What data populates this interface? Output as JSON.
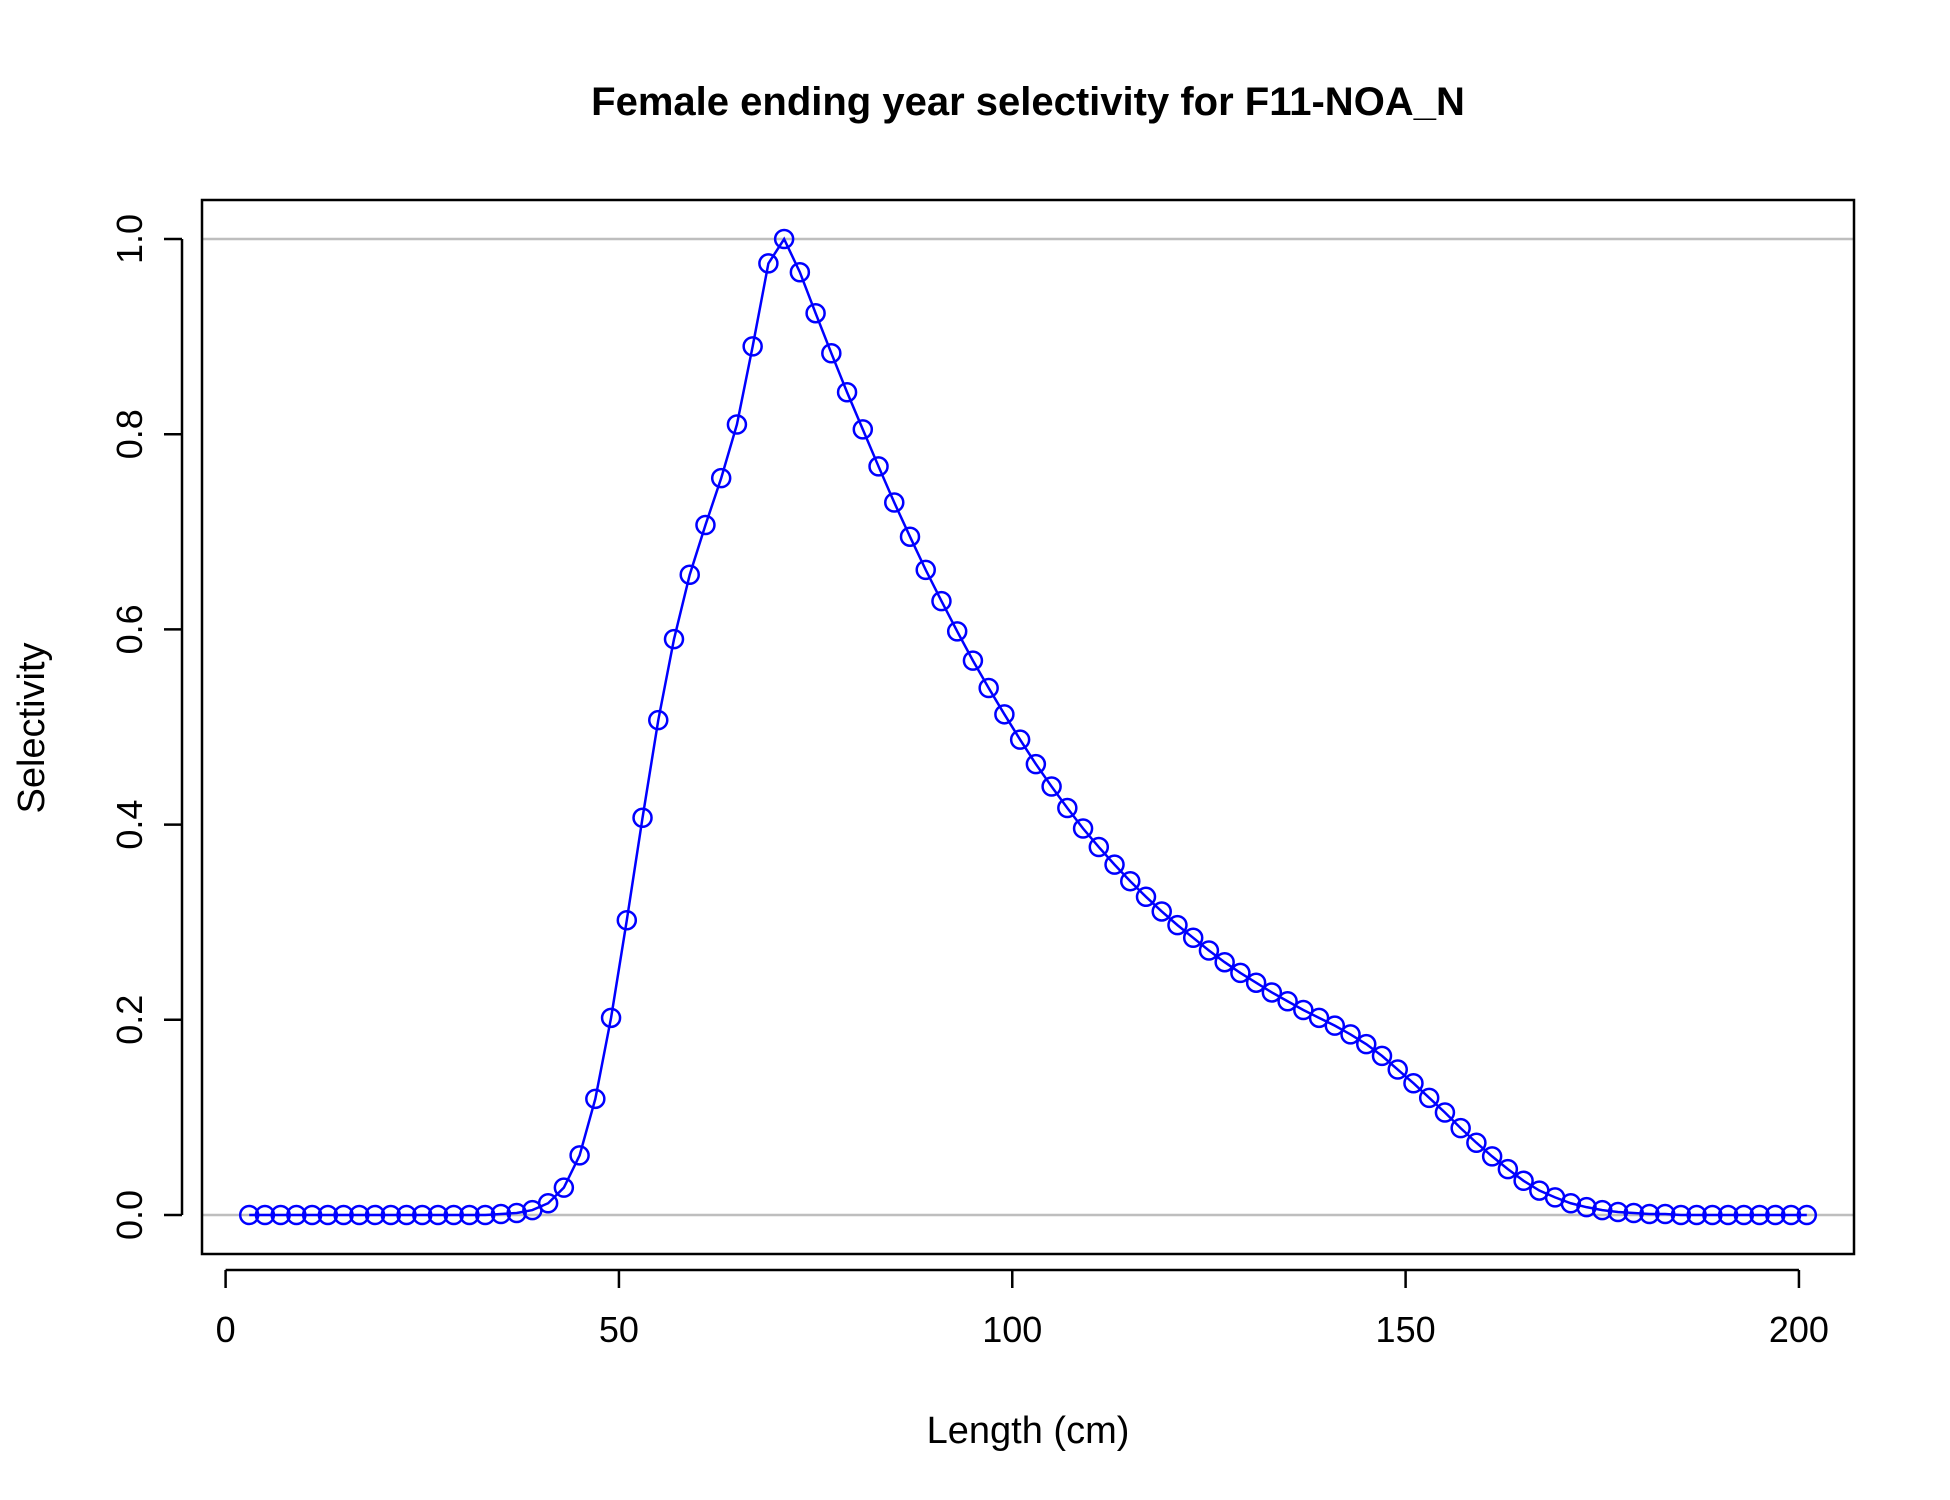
{
  "chart_data": {
    "type": "line",
    "title": "Female ending year selectivity for F11-NOA_N",
    "xlabel": "Length (cm)",
    "ylabel": "Selectivity",
    "xlim": [
      -3,
      207
    ],
    "ylim": [
      -0.04,
      1.04
    ],
    "x_ticks": [
      0,
      50,
      100,
      150,
      200
    ],
    "x_tick_labels": [
      "0",
      "50",
      "100",
      "150",
      "200"
    ],
    "y_ticks": [
      0.0,
      0.2,
      0.4,
      0.6,
      0.8,
      1.0
    ],
    "y_tick_labels": [
      "0.0",
      "0.2",
      "0.4",
      "0.6",
      "0.8",
      "1.0"
    ],
    "reference_lines": [
      0,
      1
    ],
    "grid": false,
    "marker": "open-circle",
    "series": [
      {
        "color": "#0000ff",
        "x": [
          3,
          5,
          7,
          9,
          11,
          13,
          15,
          17,
          19,
          21,
          23,
          25,
          27,
          29,
          31,
          33,
          35,
          37,
          39,
          41,
          43,
          45,
          47,
          49,
          51,
          53,
          55,
          57,
          59,
          61,
          63,
          65,
          67,
          69,
          71,
          73,
          75,
          77,
          79,
          81,
          83,
          85,
          87,
          89,
          91,
          93,
          95,
          97,
          99,
          101,
          103,
          105,
          107,
          109,
          111,
          113,
          115,
          117,
          119,
          121,
          123,
          125,
          127,
          129,
          131,
          133,
          135,
          137,
          139,
          141,
          143,
          145,
          147,
          149,
          151,
          153,
          155,
          157,
          159,
          161,
          163,
          165,
          167,
          169,
          171,
          173,
          175,
          177,
          179,
          181,
          183,
          185,
          187,
          189,
          191,
          193,
          195,
          197,
          199,
          201
        ],
        "y": [
          0,
          0,
          0,
          0,
          0,
          0,
          0,
          0,
          0,
          0,
          0,
          0,
          0,
          0,
          0,
          0,
          0.001,
          0.002,
          0.005,
          0.012,
          0.028,
          0.061,
          0.119,
          0.202,
          0.302,
          0.407,
          0.507,
          0.59,
          0.656,
          0.707,
          0.755,
          0.81,
          0.89,
          0.975,
          1.0,
          0.966,
          0.924,
          0.883,
          0.843,
          0.805,
          0.767,
          0.73,
          0.695,
          0.661,
          0.629,
          0.598,
          0.568,
          0.54,
          0.513,
          0.487,
          0.462,
          0.439,
          0.417,
          0.396,
          0.377,
          0.359,
          0.342,
          0.326,
          0.311,
          0.297,
          0.284,
          0.271,
          0.259,
          0.248,
          0.238,
          0.228,
          0.219,
          0.21,
          0.202,
          0.194,
          0.185,
          0.175,
          0.163,
          0.149,
          0.135,
          0.12,
          0.105,
          0.089,
          0.074,
          0.06,
          0.047,
          0.035,
          0.025,
          0.018,
          0.012,
          0.008,
          0.005,
          0.003,
          0.002,
          0.001,
          0.001,
          0,
          0,
          0,
          0,
          0,
          0,
          0,
          0,
          0
        ]
      }
    ]
  }
}
